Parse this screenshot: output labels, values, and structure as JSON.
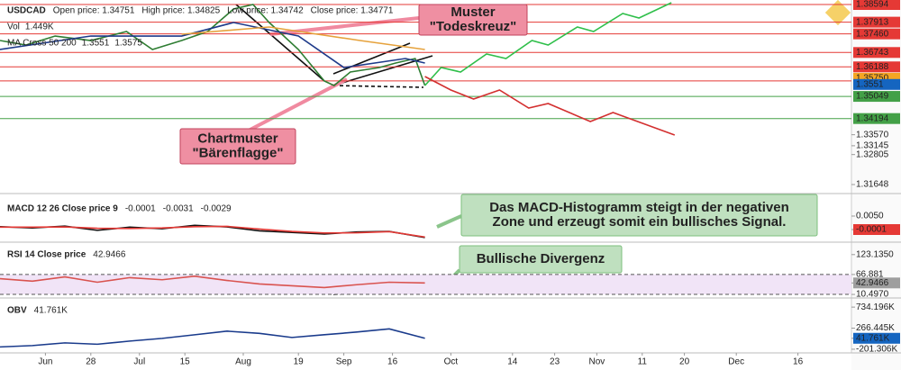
{
  "chart_data": [
    {
      "type": "line",
      "title": "USDCAD",
      "info": [
        "Open price: 1.34751",
        "High price: 1.34825",
        "Low price: 1.34742",
        "Close price: 1.34771"
      ],
      "indicators": [
        "Vol",
        "1.449K",
        "MA Cross 50 200",
        "1.3551",
        "1.3575"
      ],
      "annotations": [
        [
          "Muster",
          "\"Todeskreuz\""
        ],
        [
          "Chartmuster",
          "\"Bärenflagge\""
        ]
      ],
      "series": [
        {
          "color": "#2e7d32",
          "x": [
            0,
            8,
            17,
            28,
            39,
            47,
            56,
            64,
            72,
            78,
            83,
            92,
            100,
            103,
            108,
            117,
            122,
            128,
            131
          ],
          "values": [
            1.37205,
            1.37031,
            1.37378,
            1.37205,
            1.37552,
            1.36858,
            1.37205,
            1.37552,
            1.3842,
            1.38594,
            1.37899,
            1.36858,
            1.35642,
            1.35468,
            1.35989,
            1.36163,
            1.36337,
            1.3651,
            1.35468
          ]
        },
        {
          "color": "#1e3a8a",
          "x": [
            0,
            28,
            56,
            72,
            92,
            106,
            125,
            131
          ],
          "values": [
            1.36858,
            1.37378,
            1.37378,
            1.37899,
            1.37378,
            1.36163,
            1.3651,
            1.36337
          ]
        },
        {
          "color": "#e6a23c",
          "x": [
            56,
            83,
            111,
            131
          ],
          "values": [
            1.37448,
            1.37726,
            1.37205,
            1.36858
          ]
        },
        {
          "color": "#2fbf4a",
          "x": [
            131,
            136,
            142,
            150,
            156,
            164,
            169,
            178,
            183,
            192,
            197,
            207
          ],
          "values": [
            1.35468,
            1.36163,
            1.35989,
            1.36684,
            1.3651,
            1.37205,
            1.37031,
            1.37726,
            1.37552,
            1.38247,
            1.38073,
            1.38663
          ]
        },
        {
          "color": "#d32f2f",
          "x": [
            131,
            139,
            146,
            154,
            163,
            169,
            182,
            189,
            208
          ],
          "values": [
            1.35816,
            1.35295,
            1.34947,
            1.35295,
            1.346,
            1.34774,
            1.34079,
            1.34426,
            1.33558
          ]
        }
      ],
      "xlim": [
        0,
        262.5
      ],
      "xticks": [
        {
          "value": 14,
          "label": "Jun"
        },
        28,
        {
          "value": 43,
          "label": "Jul"
        },
        {
          "value": 57,
          "label": "15"
        },
        {
          "value": 75,
          "label": "Aug"
        },
        {
          "value": 92,
          "label": "19"
        },
        {
          "value": 106,
          "label": "Sep"
        },
        {
          "value": 121,
          "label": "16"
        },
        {
          "value": 139,
          "label": "Oct"
        },
        {
          "value": 158,
          "label": "14"
        },
        {
          "value": 171,
          "label": "23"
        },
        {
          "value": 184,
          "label": "Nov"
        },
        {
          "value": 198,
          "label": "11"
        },
        {
          "value": 211,
          "label": "20"
        },
        {
          "value": 227,
          "label": "Dec"
        },
        {
          "value": 246,
          "label": "16"
        }
      ],
      "ylim": [
        1.31474,
        1.38768
      ],
      "yticks": [
        1.38594,
        1.37913,
        {
          "value": 1.3746,
          "label": "1.37460"
        },
        1.36743,
        1.36188,
        1.35648,
        1.35049,
        1.34194,
        {
          "value": 1.3357,
          "label": "1.33570"
        },
        1.33145,
        1.32805,
        1.31648
      ],
      "grid_colors": [
        "#e53935",
        "#e53935",
        "#e53935",
        "#e53935",
        "#e53935",
        "#e53935",
        "#43a047",
        "#43a047",
        null,
        null,
        null,
        null
      ],
      "markers": [
        {
          "value": 1.3575,
          "label": "1.35750",
          "color": "#f5a623"
        },
        {
          "value": 1.3551,
          "label": "1.3551",
          "color": "#1565c0"
        }
      ]
    },
    {
      "type": "line",
      "title": "MACD 12 26 Close price 9",
      "info": [
        "-0.0001",
        "-0.0031",
        "-0.0029"
      ],
      "annotations": [
        [
          "Das MACD-Histogramm steigt in der negativen",
          "Zone und erzeugt somit ein bullisches Signal."
        ]
      ],
      "series": [
        {
          "color": "#111111",
          "x": [
            0,
            10,
            20,
            30,
            40,
            50,
            60,
            70,
            80,
            90,
            100,
            110,
            120,
            131
          ],
          "values": [
            0.001,
            0.0005,
            0.0012,
            -0.0004,
            0.0008,
            0.0002,
            0.0015,
            0.0009,
            -0.0006,
            -0.0012,
            -0.0018,
            -0.001,
            -0.0008,
            -0.0031
          ]
        },
        {
          "color": "#e53935",
          "x": [
            0,
            10,
            20,
            30,
            40,
            50,
            60,
            70,
            80,
            90,
            100,
            110,
            120,
            131
          ],
          "values": [
            0.0008,
            0.0008,
            0.0009,
            0.0004,
            0.0003,
            0.0005,
            0.001,
            0.0011,
            0.0001,
            -0.0008,
            -0.0014,
            -0.0013,
            -0.0009,
            -0.0029
          ]
        }
      ],
      "ylim": [
        -0.00452,
        0.0118
      ],
      "yticks": [
        {
          "value": 0.005,
          "label": "0.0050"
        },
        -0.0001
      ],
      "highlight_tick": 1,
      "highlight_color": "#e53935"
    },
    {
      "type": "line",
      "title": "RSI 14 Close price",
      "info": [
        "42.9466"
      ],
      "annotations": [
        [
          "Bullische Divergenz"
        ]
      ],
      "series": [
        {
          "color": "#d9534f",
          "x": [
            0,
            10,
            20,
            30,
            40,
            50,
            60,
            70,
            80,
            90,
            100,
            110,
            120,
            131
          ],
          "values": [
            55,
            48,
            60,
            45,
            58,
            52,
            62,
            50,
            40,
            35,
            30,
            38,
            45,
            42.9466
          ]
        }
      ],
      "ylim": [
        2.99,
        153.2
      ],
      "yticks": [
        {
          "value": 123.135,
          "label": "123.1350"
        },
        66.881,
        42.9466,
        {
          "value": 10.497,
          "label": "10.4970"
        }
      ],
      "band": true,
      "highlight_tick": 2,
      "highlight_color": "#9e9e9e"
    },
    {
      "type": "line",
      "title": "OBV",
      "info": [
        "41.761K"
      ],
      "series": [
        {
          "color": "#1a3b8c",
          "x": [
            0,
            10,
            20,
            30,
            40,
            50,
            60,
            70,
            80,
            90,
            100,
            110,
            120,
            131
          ],
          "values": [
            -150000,
            -120000,
            -60000,
            -90000,
            -20000,
            40000,
            120000,
            200000,
            150000,
            60000,
            120000,
            180000,
            250000,
            41761
          ]
        }
      ],
      "ylim": [
        -282506,
        896596
      ],
      "yticks": [
        {
          "value": 734196,
          "label": "734.196K"
        },
        {
          "value": 266445,
          "label": "266.445K"
        },
        {
          "value": 41761,
          "label": "41.761K"
        },
        {
          "value": -201306,
          "label": "-201.306K"
        }
      ],
      "highlight_tick": 2,
      "highlight_color": "#1565c0"
    }
  ]
}
